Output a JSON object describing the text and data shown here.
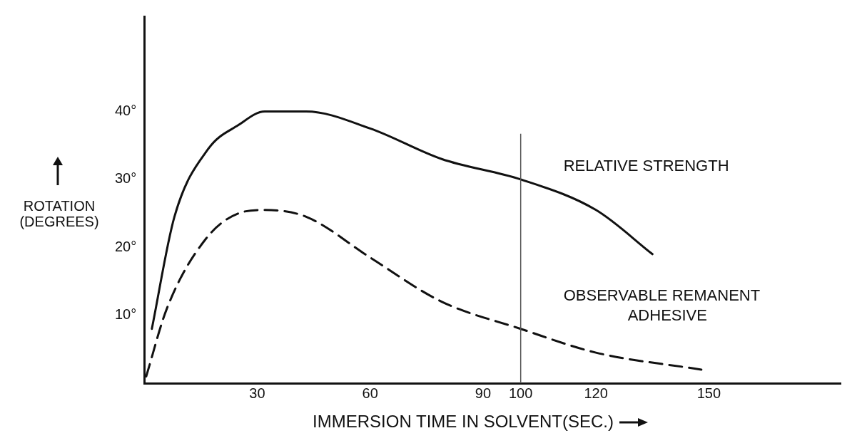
{
  "chart_data": {
    "type": "line",
    "xlabel": "IMMERSION TIME IN SOLVENT(SEC.)",
    "ylabel": "ROTATION (DEGREES)",
    "xlim": [
      0,
      185
    ],
    "ylim": [
      0,
      54
    ],
    "xticks": [
      30,
      60,
      90,
      100,
      120,
      150
    ],
    "yticks": [
      {
        "value": 10,
        "label": "10°"
      },
      {
        "value": 20,
        "label": "20°"
      },
      {
        "value": 30,
        "label": "30°"
      },
      {
        "value": 40,
        "label": "40°"
      }
    ],
    "ref_lines": [
      {
        "axis": "x",
        "value": 100,
        "color": "#555555"
      }
    ],
    "legend": false,
    "grid": false,
    "marker": "none",
    "series": [
      {
        "name": "RELATIVE STRENGTH",
        "color": "#111111",
        "line_style": "solid",
        "x": [
          2,
          8,
          17,
          25,
          32,
          43,
          60,
          79,
          100,
          120,
          135
        ],
        "values": [
          8,
          24.5,
          34.5,
          38,
          40,
          40,
          37.5,
          33,
          30,
          25.5,
          19
        ]
      },
      {
        "name": "OBSERVABLE REMANENT ADHESIVE",
        "color": "#111111",
        "line_style": "dashed",
        "x": [
          0.5,
          6,
          16,
          25,
          32,
          43,
          60,
          79,
          100,
          120,
          148
        ],
        "values": [
          1,
          11,
          21,
          25,
          25.5,
          24.5,
          18.5,
          12,
          8,
          4.5,
          2
        ]
      }
    ]
  }
}
